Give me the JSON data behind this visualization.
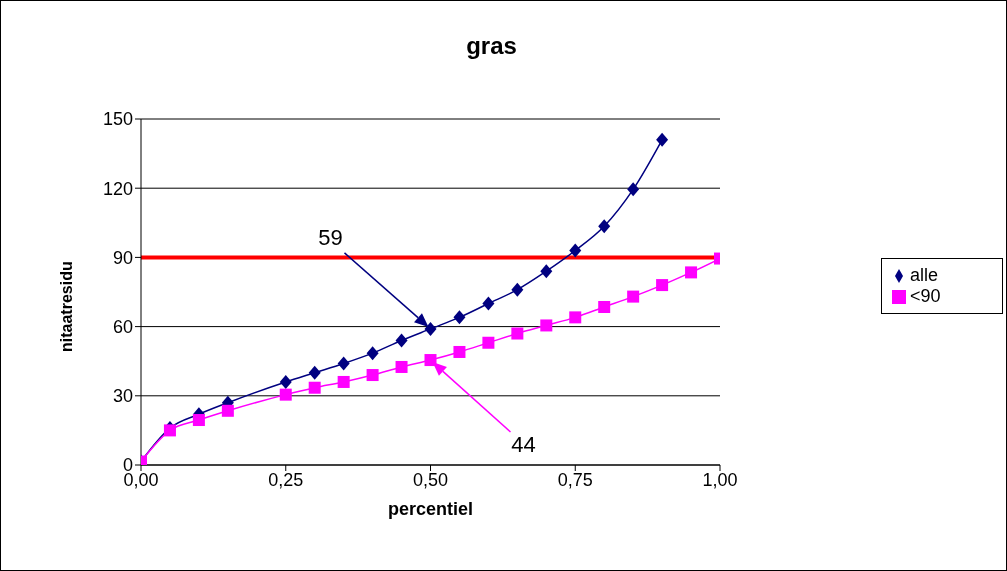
{
  "chart_data": {
    "type": "line",
    "title": "gras",
    "xlabel": "percentiel",
    "ylabel": "nitaatresidu",
    "xlim": [
      0,
      1
    ],
    "xticks": [
      {
        "value": 0,
        "label": "0,00"
      },
      {
        "value": 0.25,
        "label": "0,25"
      },
      {
        "value": 0.5,
        "label": "0,50"
      },
      {
        "value": 0.75,
        "label": "0,75"
      },
      {
        "value": 1,
        "label": "1,00"
      }
    ],
    "ylim": [
      0,
      150
    ],
    "yticks": [
      0,
      30,
      60,
      90,
      120,
      150
    ],
    "grid": "y",
    "legend": "right",
    "series": [
      {
        "name": "alle",
        "color": "#000080",
        "marker": "diamond",
        "x": [
          0,
          0.05,
          0.1,
          0.15,
          0.25,
          0.3,
          0.35,
          0.4,
          0.45,
          0.5,
          0.55,
          0.6,
          0.65,
          0.7,
          0.75,
          0.8,
          0.85,
          0.9
        ],
        "values": [
          1.5,
          16,
          22,
          27,
          36,
          40,
          44,
          48.5,
          54,
          59,
          64,
          70,
          76,
          84,
          93,
          103.5,
          119.5,
          141
        ]
      },
      {
        "name": "<90",
        "color": "#ff00ff",
        "marker": "square",
        "x": [
          0,
          0.05,
          0.1,
          0.15,
          0.25,
          0.3,
          0.35,
          0.4,
          0.45,
          0.5,
          0.55,
          0.6,
          0.65,
          0.7,
          0.75,
          0.8,
          0.85,
          0.9,
          0.95,
          1
        ],
        "values": [
          1.5,
          15,
          19.5,
          23.5,
          30.5,
          33.5,
          36,
          39,
          42.5,
          45.5,
          49,
          53,
          57,
          60.5,
          64,
          68.5,
          73,
          78,
          83.5,
          89.5
        ]
      }
    ],
    "ref_lines": [
      {
        "axis": "y",
        "value": 90,
        "color": "#ff0000"
      }
    ],
    "annotations": [
      "59",
      "44"
    ]
  }
}
